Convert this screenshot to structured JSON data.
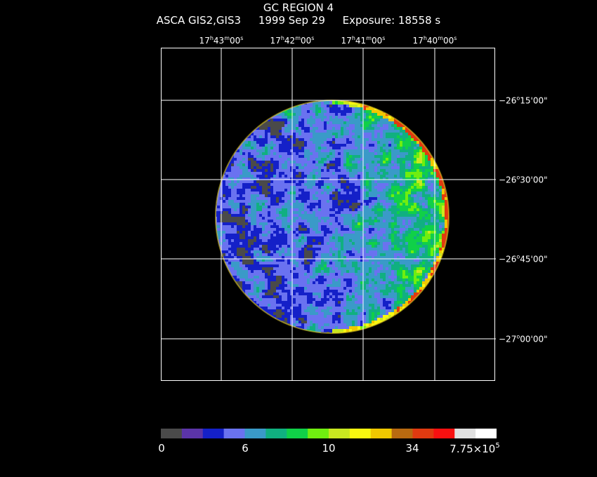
{
  "header": {
    "title": "GC REGION 4",
    "instrument": "ASCA GIS2,GIS3",
    "date": "1999 Sep 29",
    "exposure": "Exposure: 18558 s"
  },
  "ra_labels": [
    {
      "h": "17",
      "m": "43",
      "s": "00"
    },
    {
      "h": "17",
      "m": "42",
      "s": "00"
    },
    {
      "h": "17",
      "m": "41",
      "s": "00"
    },
    {
      "h": "17",
      "m": "40",
      "s": "00"
    }
  ],
  "dec_labels": [
    {
      "d": "−26",
      "m": "15",
      "s": "00"
    },
    {
      "d": "−26",
      "m": "30",
      "s": "00"
    },
    {
      "d": "−26",
      "m": "45",
      "s": "00"
    },
    {
      "d": "−27",
      "m": "00",
      "s": "00"
    }
  ],
  "colorbar": {
    "colors": [
      "#4a4a4a",
      "#5b34a8",
      "#1420c8",
      "#6a72f0",
      "#3a9ac8",
      "#10b080",
      "#10d048",
      "#70ee10",
      "#c8e820",
      "#f8f810",
      "#f0c800",
      "#b86a10",
      "#e03a10",
      "#f81010",
      "#e0e0e0",
      "#ffffff"
    ],
    "labels": [
      "0",
      "6",
      "10",
      "34"
    ],
    "max_label_base": "7.75×10",
    "max_label_exp": "5"
  }
}
